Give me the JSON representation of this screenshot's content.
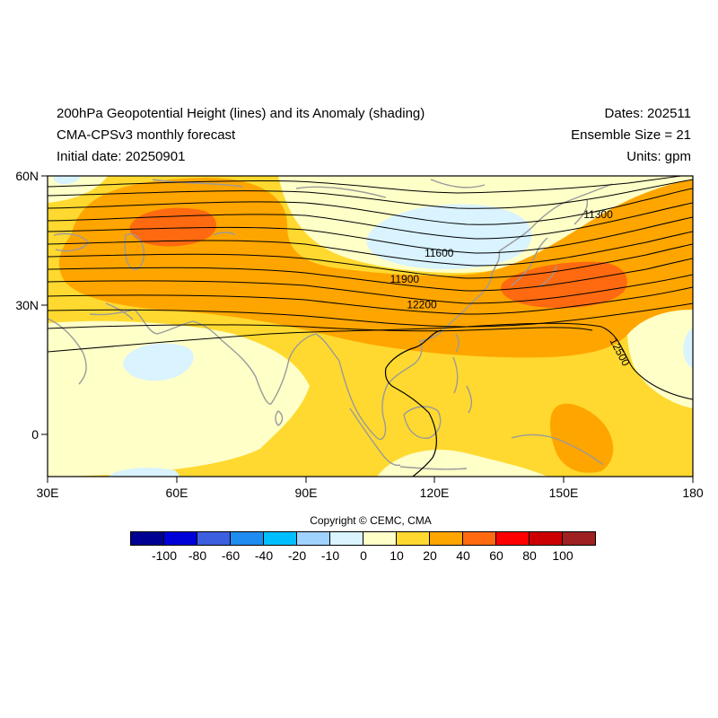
{
  "header": {
    "title": "200hPa Geopotential Height (lines) and its Anomaly (shading)",
    "subtitle": "CMA-CPSv3 monthly forecast",
    "initial_date": "Initial date: 20250901",
    "dates": "Dates: 202511",
    "ensemble": "Ensemble Size = 21",
    "units": "Units: gpm"
  },
  "map": {
    "lon_range": [
      30,
      180
    ],
    "lat_range": [
      -10,
      60
    ],
    "x_ticks": [
      "30E",
      "60E",
      "90E",
      "120E",
      "150E",
      "180"
    ],
    "y_ticks": [
      "60N",
      "30N",
      "0"
    ],
    "contour_labels": [
      {
        "value": "11300",
        "lon": 158,
        "lat": 51
      },
      {
        "value": "11600",
        "lon": 121,
        "lat": 42
      },
      {
        "value": "11900",
        "lon": 113,
        "lat": 36
      },
      {
        "value": "12200",
        "lon": 117,
        "lat": 30
      },
      {
        "value": "12500",
        "lon": 163,
        "lat": 19
      }
    ]
  },
  "colorbar": {
    "labels": [
      "-100",
      "-80",
      "-60",
      "-40",
      "-20",
      "-10",
      "0",
      "10",
      "20",
      "40",
      "60",
      "80",
      "100"
    ],
    "colors": [
      "#000092",
      "#0000d9",
      "#3c5fe0",
      "#1e8cf0",
      "#00bfff",
      "#9fd2ff",
      "#d9f3ff",
      "#ffffc8",
      "#ffd92f",
      "#ffa500",
      "#ff6a10",
      "#ff0000",
      "#cc0000",
      "#9e2020"
    ]
  },
  "copyright": "Copyright © CEMC, CMA"
}
